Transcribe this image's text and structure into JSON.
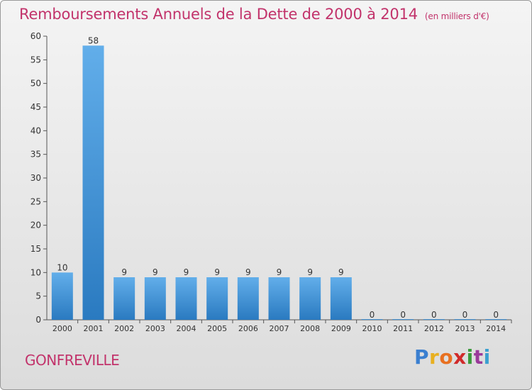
{
  "header": {
    "title": "Remboursements Annuels de la Dette de 2000 à 2014",
    "subtitle": "(en milliers d'€)"
  },
  "footer": {
    "place": "GONFREVILLE",
    "logo_letters": [
      "P",
      "r",
      "o",
      "x",
      "i",
      "t",
      "i"
    ],
    "logo_colors": [
      "#3a7fd0",
      "#e8b020",
      "#e87020",
      "#d02a2a",
      "#3a9a3a",
      "#9a3a9a",
      "#3aa0d0"
    ]
  },
  "chart_data": {
    "type": "bar",
    "categories": [
      "2000",
      "2001",
      "2002",
      "2003",
      "2004",
      "2005",
      "2006",
      "2007",
      "2008",
      "2009",
      "2010",
      "2011",
      "2012",
      "2013",
      "2014"
    ],
    "values": [
      10,
      58,
      9,
      9,
      9,
      9,
      9,
      9,
      9,
      9,
      0,
      0,
      0,
      0,
      0
    ],
    "data_labels": [
      "10",
      "58",
      "9",
      "9",
      "9",
      "9",
      "9",
      "9",
      "9",
      "9",
      "0",
      "0",
      "0",
      "0",
      "0"
    ],
    "yticks": [
      0,
      5,
      10,
      15,
      20,
      25,
      30,
      35,
      40,
      45,
      50,
      55,
      60
    ],
    "ylim": [
      0,
      60
    ],
    "grid": false,
    "bar_color_light": "#62aeea",
    "bar_color_dark": "#2a7ac0"
  }
}
